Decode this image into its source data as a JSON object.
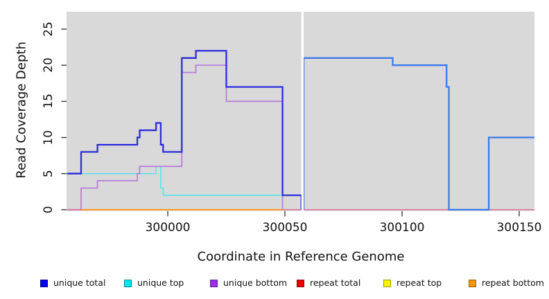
{
  "chart_data": {
    "type": "line",
    "subtype": "step-coverage-plot",
    "title": "",
    "xlabel": "Coordinate in Reference Genome",
    "ylabel": "Read Coverage Depth",
    "xlim": [
      299956.8,
      300156.5
    ],
    "ylim": [
      0,
      27.4
    ],
    "x_ticks": [
      300000,
      300050,
      300100,
      300150
    ],
    "y_ticks": [
      0,
      5,
      10,
      15,
      20,
      25
    ],
    "grid": false,
    "plot_background": "#d9d9d9",
    "segment_gap": {
      "from": 300057,
      "to": 300058,
      "color": "#ffffff"
    },
    "series": [
      {
        "name": "unique top",
        "key": "unique-top",
        "color": "#5ee2ed",
        "stroke_width": 1.7,
        "points": [
          [
            299957,
            5
          ],
          [
            299995,
            6
          ],
          [
            299997,
            3
          ],
          [
            299998,
            2
          ],
          [
            300057,
            0
          ]
        ],
        "end": 300057
      },
      {
        "name": "unique bottom",
        "key": "unique-bottom",
        "color": "#b678da",
        "stroke_width": 1.7,
        "points": [
          [
            299957,
            0
          ],
          [
            299963,
            3
          ],
          [
            299970,
            4
          ],
          [
            299987,
            5
          ],
          [
            299988,
            6
          ],
          [
            300006,
            19
          ],
          [
            300012,
            20
          ],
          [
            300025,
            15
          ],
          [
            300049,
            0
          ]
        ],
        "end": 300049
      },
      {
        "name": "repeat total (left segment)",
        "key": "repeat-total-left",
        "color": "#dd6d92",
        "stroke_width": 1.6,
        "points": [
          [
            299957,
            0
          ]
        ],
        "end": 300057
      },
      {
        "name": "repeat total (right segment)",
        "key": "repeat-total-right",
        "color": "#dd6d92",
        "stroke_width": 1.6,
        "points": [
          [
            300058,
            0
          ]
        ],
        "end": 300157
      },
      {
        "name": "repeat top",
        "key": "repeat-top",
        "color": "#f2f200",
        "stroke_width": 1.6,
        "points": [
          [
            299963,
            0
          ]
        ],
        "end": 300049
      },
      {
        "name": "repeat bottom",
        "key": "repeat-bottom",
        "color": "#ff9e26",
        "stroke_width": 2,
        "points": [
          [
            299963,
            0
          ]
        ],
        "end": 300049
      },
      {
        "name": "unique total (left segment)",
        "key": "unique-total-left",
        "color": "#2c2cda",
        "stroke_width": 2.3,
        "points": [
          [
            299957,
            5
          ],
          [
            299963,
            8
          ],
          [
            299970,
            9
          ],
          [
            299987,
            10
          ],
          [
            299988,
            11
          ],
          [
            299995,
            12
          ],
          [
            299997,
            9
          ],
          [
            299998,
            8
          ],
          [
            300006,
            21
          ],
          [
            300012,
            22
          ],
          [
            300025,
            17
          ],
          [
            300049,
            2
          ],
          [
            300057,
            0
          ]
        ],
        "end": 300057
      },
      {
        "name": "unique total (right segment)",
        "key": "unique-total-right",
        "color": "#3d7ae9",
        "stroke_width": 2.3,
        "points": [
          [
            300058,
            0
          ],
          [
            300058,
            21
          ],
          [
            300096,
            20
          ],
          [
            300119,
            17
          ],
          [
            300120,
            0
          ],
          [
            300137,
            10
          ]
        ],
        "end": 300157
      }
    ],
    "legend_position": "bottom"
  },
  "legend": {
    "items": [
      {
        "label": "unique total",
        "color": "#0000ed"
      },
      {
        "label": "unique top",
        "color": "#00e5ee"
      },
      {
        "label": "unique bottom",
        "color": "#9d2fe3"
      },
      {
        "label": "repeat total",
        "color": "#ea0000"
      },
      {
        "label": "repeat top",
        "color": "#f5f500"
      },
      {
        "label": "repeat bottom",
        "color": "#f59b00"
      }
    ]
  }
}
